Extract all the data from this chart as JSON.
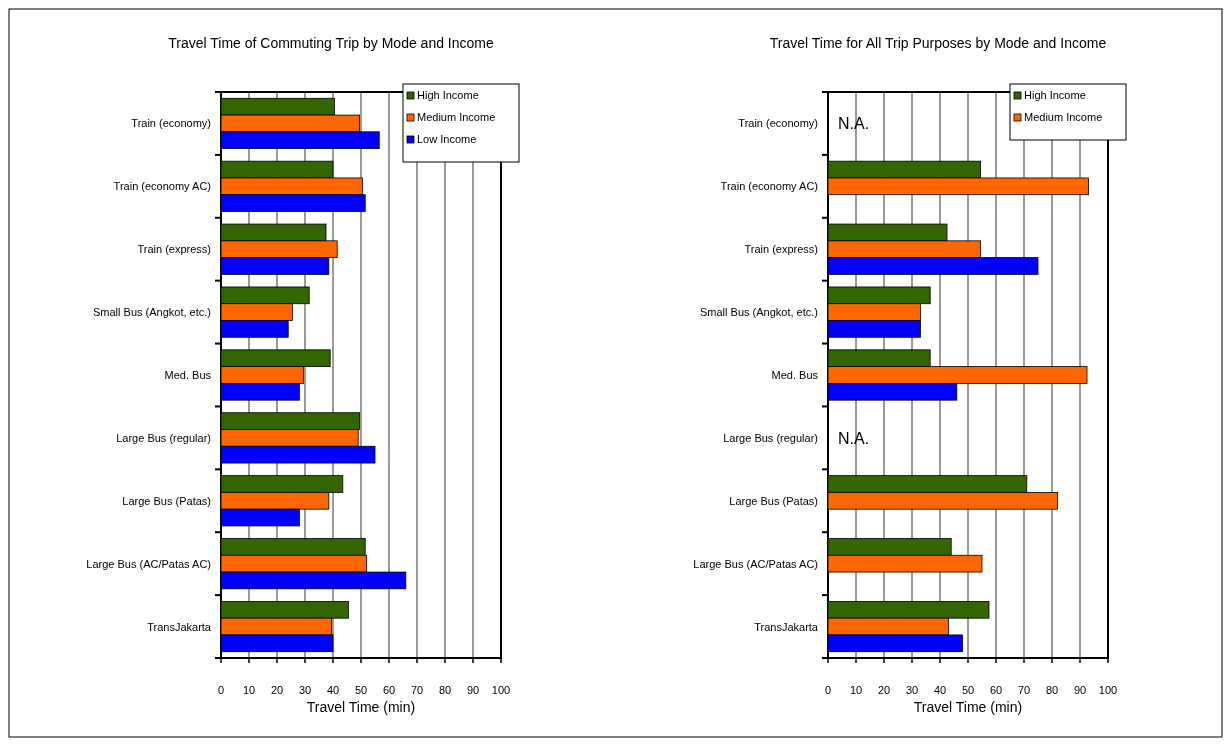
{
  "chart_data": [
    {
      "type": "bar",
      "orientation": "horizontal",
      "title": "Travel Time of Commuting Trip by Mode and Income",
      "xlabel": "Travel Time (min)",
      "categories": [
        "Train (economy)",
        "Train (economy AC)",
        "Train (express)",
        "Small Bus (Angkot, etc.)",
        "Med. Bus",
        "Large Bus (regular)",
        "Large Bus (Patas)",
        "Large Bus (AC/Patas AC)",
        "TransJakarta"
      ],
      "series": [
        {
          "name": "High Income",
          "color": "#336600",
          "values": [
            40.5,
            40,
            37.5,
            31.5,
            39,
            49.5,
            43.5,
            51.5,
            45.5
          ]
        },
        {
          "name": "Medium Income",
          "color": "#ff6600",
          "values": [
            49.5,
            50.5,
            41.5,
            25.5,
            29.5,
            49,
            38.5,
            52,
            39.5
          ]
        },
        {
          "name": "Low Income",
          "color": "#0000ff",
          "values": [
            56.5,
            51.5,
            38.5,
            24,
            28,
            55,
            28,
            66,
            40
          ]
        }
      ],
      "xlim": [
        0,
        100
      ],
      "xticks": [
        0,
        10,
        20,
        30,
        40,
        50,
        60,
        70,
        80,
        90,
        100
      ],
      "grid": "x",
      "legend": "top right"
    },
    {
      "type": "bar",
      "orientation": "horizontal",
      "title": "Travel Time for All Trip Purposes by Mode and Income",
      "xlabel": "Travel Time (min)",
      "categories": [
        "Train (economy)",
        "Train (economy AC)",
        "Train (express)",
        "Small Bus (Angkot, etc.)",
        "Med. Bus",
        "Large Bus (regular)",
        "Large Bus (Patas)",
        "Large Bus (AC/Patas AC)",
        "TransJakarta"
      ],
      "series": [
        {
          "name": "High Income",
          "color": "#336600",
          "values": [
            null,
            54.5,
            42.5,
            36.5,
            36.5,
            null,
            71,
            44,
            57.5
          ]
        },
        {
          "name": "Medium Income",
          "color": "#ff6600",
          "values": [
            null,
            93,
            54.5,
            33,
            92.5,
            null,
            82,
            55,
            43
          ]
        },
        {
          "color": "#0000ff",
          "values": [
            null,
            null,
            75,
            33,
            46,
            null,
            null,
            null,
            48
          ]
        }
      ],
      "xlim": [
        0,
        100
      ],
      "xticks": [
        0,
        10,
        20,
        30,
        40,
        50,
        60,
        70,
        80,
        90,
        100
      ],
      "grid": "x",
      "legend": "top right",
      "annotations": [
        "N.A.",
        "N.A."
      ]
    }
  ]
}
